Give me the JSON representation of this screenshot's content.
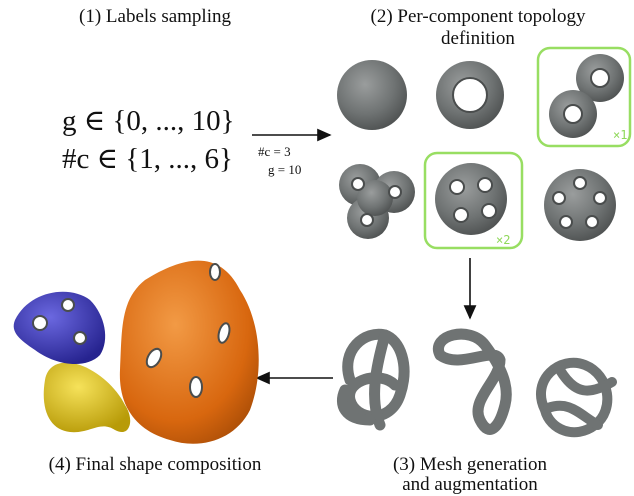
{
  "steps": [
    {
      "title_lines": [
        "(1) Labels sampling"
      ]
    },
    {
      "title_lines": [
        "(2) Per-component topology",
        "definition"
      ]
    },
    {
      "title_lines": [
        "(3) Mesh  generation",
        "and augmentation"
      ]
    },
    {
      "title_lines": [
        "(4) Final shape composition"
      ]
    }
  ],
  "sampling": {
    "ranges": [
      "g ∈ {0, ..., 10}",
      "#c ∈ {1, ..., 6}"
    ],
    "sample": [
      "#c = 3",
      "g = 10"
    ]
  },
  "multiplicities": [
    "×1",
    "×2"
  ]
}
